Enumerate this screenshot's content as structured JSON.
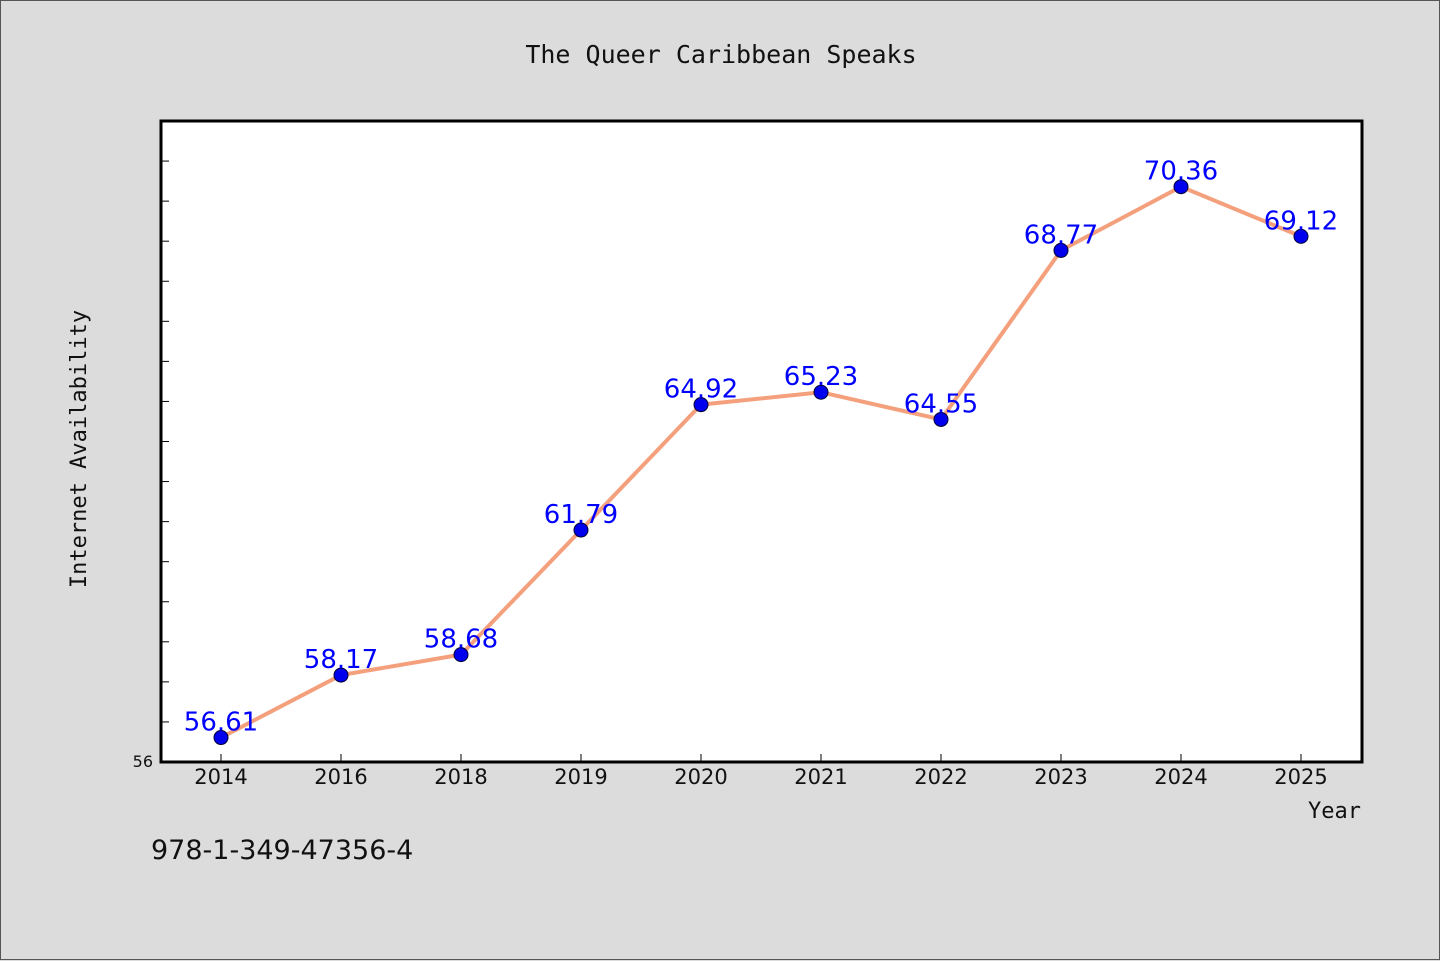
{
  "isbn_text": "978-1-349-47356-4",
  "colors": {
    "background": "#dcdcdc",
    "plot_area": "#ffffff",
    "line": "#f4a07c",
    "marker": "#0000ee",
    "data_label": "#0000ff"
  },
  "chart_data": {
    "type": "line",
    "title": "The Queer Caribbean Speaks",
    "xlabel": "Year",
    "ylabel": "Internet Availability",
    "categories": [
      "2014",
      "2016",
      "2018",
      "2019",
      "2020",
      "2021",
      "2022",
      "2023",
      "2024",
      "2025"
    ],
    "series": [
      {
        "values": [
          56.61,
          58.17,
          58.68,
          61.79,
          64.92,
          65.23,
          64.55,
          68.77,
          70.36,
          69.12
        ],
        "labels": [
          "56.61",
          "58.17",
          "58.68",
          "61.79",
          "64.92",
          "65.23",
          "64.55",
          "68.77",
          "70.36",
          "69.12"
        ]
      }
    ],
    "ylim": [
      56,
      72
    ],
    "ytick_labels": [
      {
        "value": 56,
        "label": "56"
      }
    ],
    "yminor_step": 1,
    "grid": false,
    "legend": "none"
  }
}
